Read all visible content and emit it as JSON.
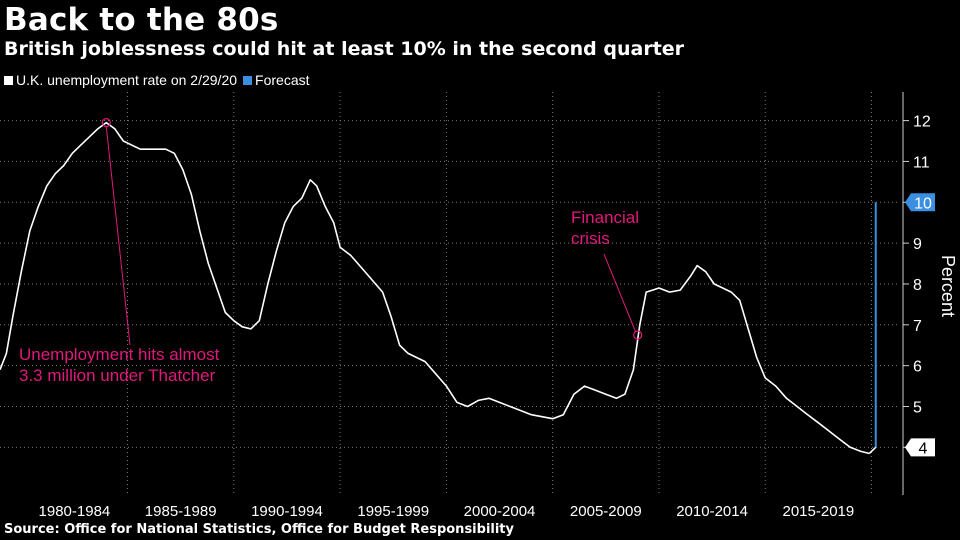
{
  "header": {
    "title": "Back to the 80s",
    "subtitle": "British joblessness could hit at least 10% in the second quarter"
  },
  "legend": [
    {
      "label": "U.K. unemployment rate on 2/29/20",
      "color": "#ffffff"
    },
    {
      "label": "Forecast",
      "color": "#3b8fe0"
    }
  ],
  "source": "Source: Office for National Statistics, Office for Budget Responsibility",
  "colors": {
    "series": "#ffffff",
    "forecast": "#3b8fe0",
    "annotation": "#e0197d",
    "grid": "#7a7a7a"
  },
  "chart_data": {
    "type": "line",
    "ylabel": "Percent",
    "ylim": [
      3.2,
      12.7
    ],
    "yticks": [
      4,
      5,
      6,
      7,
      8,
      9,
      10,
      11,
      12
    ],
    "xlim": [
      1979.0,
      2021.2
    ],
    "x_categories": [
      "1980-1984",
      "1985-1989",
      "1990-1994",
      "1995-1999",
      "2000-2004",
      "2005-2009",
      "2010-2014",
      "2015-2019"
    ],
    "grid": "vertical dotted",
    "series": [
      {
        "name": "U.K. unemployment rate on 2/29/20",
        "x": [
          1979.0,
          1979.3,
          1979.6,
          1980.0,
          1980.4,
          1980.8,
          1981.2,
          1981.6,
          1982.0,
          1982.4,
          1982.8,
          1983.2,
          1983.6,
          1984.0,
          1984.4,
          1984.8,
          1985.2,
          1985.6,
          1986.0,
          1986.4,
          1986.8,
          1987.2,
          1987.6,
          1988.0,
          1988.4,
          1988.8,
          1989.2,
          1989.6,
          1990.0,
          1990.4,
          1990.8,
          1991.2,
          1991.6,
          1992.0,
          1992.4,
          1992.8,
          1993.2,
          1993.6,
          1993.9,
          1994.3,
          1994.7,
          1995.0,
          1995.5,
          1996.0,
          1996.5,
          1997.0,
          1997.4,
          1997.8,
          1998.2,
          1998.6,
          1999.0,
          1999.5,
          2000.0,
          2000.5,
          2001.0,
          2001.5,
          2002.0,
          2002.5,
          2003.0,
          2003.5,
          2004.0,
          2004.5,
          2005.0,
          2005.5,
          2006.0,
          2006.5,
          2007.0,
          2007.5,
          2008.0,
          2008.4,
          2008.8,
          2009.1,
          2009.4,
          2009.7,
          2010.0,
          2010.5,
          2011.0,
          2011.5,
          2011.8,
          2012.2,
          2012.6,
          2013.0,
          2013.4,
          2013.8,
          2014.2,
          2014.6,
          2015.0,
          2015.5,
          2016.0,
          2016.5,
          2017.0,
          2017.5,
          2018.0,
          2018.5,
          2019.0,
          2019.5,
          2019.9
        ],
        "y": [
          5.9,
          6.3,
          7.2,
          8.3,
          9.3,
          9.9,
          10.4,
          10.7,
          10.9,
          11.2,
          11.4,
          11.6,
          11.8,
          11.95,
          11.8,
          11.5,
          11.4,
          11.3,
          11.3,
          11.3,
          11.3,
          11.2,
          10.8,
          10.2,
          9.3,
          8.5,
          7.9,
          7.3,
          7.1,
          6.95,
          6.9,
          7.1,
          8.0,
          8.8,
          9.5,
          9.9,
          10.1,
          10.55,
          10.4,
          9.9,
          9.5,
          8.9,
          8.7,
          8.4,
          8.1,
          7.8,
          7.2,
          6.5,
          6.3,
          6.2,
          6.1,
          5.8,
          5.5,
          5.1,
          5.0,
          5.15,
          5.2,
          5.1,
          5.0,
          4.9,
          4.8,
          4.75,
          4.7,
          4.8,
          5.3,
          5.5,
          5.4,
          5.3,
          5.2,
          5.3,
          5.9,
          7.0,
          7.8,
          7.85,
          7.9,
          7.8,
          7.85,
          8.2,
          8.45,
          8.3,
          8.0,
          7.9,
          7.8,
          7.6,
          6.9,
          6.2,
          5.7,
          5.5,
          5.2,
          5.0,
          4.8,
          4.6,
          4.4,
          4.2,
          4.0,
          3.9,
          3.85
        ]
      },
      {
        "name": "Forecast",
        "x": [
          2020.2,
          2020.2
        ],
        "y": [
          4.0,
          10.0
        ]
      }
    ],
    "end_labels": [
      {
        "value": "10",
        "series": "Forecast"
      },
      {
        "value": "4",
        "series": "U.K. unemployment rate on 2/29/20"
      }
    ],
    "annotations": [
      {
        "text_lines": [
          "Unemployment hits almost",
          "3.3 million under Thatcher"
        ],
        "point_x": 1984.0,
        "point_y": 11.95
      },
      {
        "text_lines": [
          "Financial",
          "crisis"
        ],
        "point_x": 2009.0,
        "point_y": 6.75
      }
    ]
  }
}
